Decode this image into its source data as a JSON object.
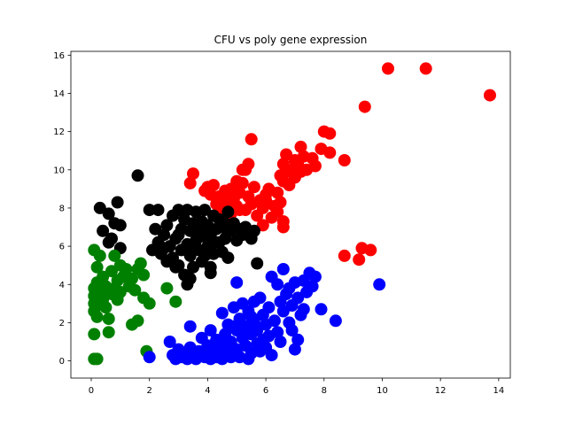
{
  "chart_data": {
    "type": "scatter",
    "title": "CFU vs poly gene expression",
    "xlabel": "",
    "ylabel": "",
    "xlim": [
      -0.7,
      14.4
    ],
    "ylim": [
      -0.9,
      16.2
    ],
    "xticks": [
      0,
      2,
      4,
      6,
      8,
      10,
      12,
      14
    ],
    "yticks": [
      0,
      2,
      4,
      6,
      8,
      10,
      12,
      14,
      16
    ],
    "grid": false,
    "series": [
      {
        "color": "#ff0000",
        "points": [
          [
            3.4,
            9.3
          ],
          [
            3.5,
            9.8
          ],
          [
            3.9,
            8.9
          ],
          [
            4.0,
            9.1
          ],
          [
            4.1,
            8.7
          ],
          [
            4.2,
            9.2
          ],
          [
            4.3,
            8.2
          ],
          [
            4.4,
            8.6
          ],
          [
            4.6,
            8.9
          ],
          [
            4.7,
            8.3
          ],
          [
            4.8,
            9.0
          ],
          [
            4.9,
            8.5
          ],
          [
            5.0,
            9.4
          ],
          [
            5.0,
            8.1
          ],
          [
            5.1,
            8.8
          ],
          [
            5.2,
            9.3
          ],
          [
            5.3,
            7.9
          ],
          [
            5.4,
            8.6
          ],
          [
            5.5,
            8.2
          ],
          [
            5.6,
            9.1
          ],
          [
            5.7,
            7.6
          ],
          [
            5.8,
            8.4
          ],
          [
            5.9,
            7.1
          ],
          [
            5.9,
            8.0
          ],
          [
            6.0,
            8.7
          ],
          [
            6.1,
            9.0
          ],
          [
            6.2,
            7.5
          ],
          [
            6.3,
            8.1
          ],
          [
            6.4,
            7.8
          ],
          [
            6.4,
            8.8
          ],
          [
            6.5,
            8.3
          ],
          [
            6.5,
            9.7
          ],
          [
            6.6,
            7.3
          ],
          [
            6.6,
            9.4
          ],
          [
            6.6,
            10.3
          ],
          [
            6.7,
            9.9
          ],
          [
            6.7,
            10.8
          ],
          [
            6.8,
            9.2
          ],
          [
            6.9,
            10.0
          ],
          [
            7.0,
            10.5
          ],
          [
            7.0,
            9.6
          ],
          [
            7.1,
            10.3
          ],
          [
            7.2,
            11.2
          ],
          [
            7.2,
            9.9
          ],
          [
            7.3,
            10.7
          ],
          [
            7.4,
            10.0
          ],
          [
            7.6,
            10.6
          ],
          [
            7.7,
            10.2
          ],
          [
            7.9,
            11.1
          ],
          [
            8.0,
            12.0
          ],
          [
            8.2,
            11.9
          ],
          [
            8.2,
            10.9
          ],
          [
            8.7,
            10.5
          ],
          [
            5.3,
            10.0
          ],
          [
            5.4,
            10.3
          ],
          [
            5.5,
            11.6
          ],
          [
            5.2,
            10.0
          ],
          [
            6.6,
            7.0
          ],
          [
            8.7,
            5.5
          ],
          [
            9.2,
            5.3
          ],
          [
            9.3,
            5.9
          ],
          [
            9.6,
            5.8
          ],
          [
            9.4,
            13.3
          ],
          [
            10.2,
            15.3
          ],
          [
            11.5,
            15.3
          ],
          [
            13.7,
            13.9
          ],
          [
            4.5,
            8.0
          ],
          [
            4.8,
            7.7
          ],
          [
            5.1,
            7.9
          ],
          [
            6.0,
            8.4
          ]
        ]
      },
      {
        "color": "#000000",
        "points": [
          [
            0.3,
            8.0
          ],
          [
            0.6,
            7.7
          ],
          [
            0.8,
            7.2
          ],
          [
            0.9,
            8.3
          ],
          [
            1.0,
            7.1
          ],
          [
            0.4,
            6.8
          ],
          [
            0.6,
            6.2
          ],
          [
            0.7,
            6.4
          ],
          [
            1.0,
            5.9
          ],
          [
            1.6,
            9.7
          ],
          [
            2.0,
            7.9
          ],
          [
            2.2,
            6.9
          ],
          [
            2.1,
            5.8
          ],
          [
            2.3,
            6.2
          ],
          [
            2.4,
            5.6
          ],
          [
            2.5,
            6.6
          ],
          [
            2.6,
            7.1
          ],
          [
            2.6,
            5.2
          ],
          [
            2.7,
            6.0
          ],
          [
            2.8,
            7.6
          ],
          [
            2.8,
            5.4
          ],
          [
            2.9,
            6.4
          ],
          [
            3.0,
            7.9
          ],
          [
            3.0,
            5.0
          ],
          [
            3.1,
            6.9
          ],
          [
            3.1,
            5.8
          ],
          [
            3.2,
            7.4
          ],
          [
            3.2,
            4.5
          ],
          [
            3.3,
            6.1
          ],
          [
            3.3,
            7.9
          ],
          [
            3.4,
            5.5
          ],
          [
            3.4,
            6.8
          ],
          [
            3.5,
            7.2
          ],
          [
            3.5,
            4.9
          ],
          [
            3.6,
            6.3
          ],
          [
            3.6,
            7.8
          ],
          [
            3.7,
            5.8
          ],
          [
            3.7,
            6.7
          ],
          [
            3.8,
            7.3
          ],
          [
            3.8,
            5.2
          ],
          [
            3.9,
            6.5
          ],
          [
            3.9,
            7.9
          ],
          [
            4.0,
            6.0
          ],
          [
            4.0,
            7.1
          ],
          [
            4.1,
            4.9
          ],
          [
            4.1,
            6.6
          ],
          [
            4.2,
            7.6
          ],
          [
            4.2,
            5.6
          ],
          [
            4.3,
            6.9
          ],
          [
            4.4,
            7.4
          ],
          [
            4.4,
            6.2
          ],
          [
            4.5,
            5.7
          ],
          [
            4.5,
            7.0
          ],
          [
            4.6,
            6.4
          ],
          [
            4.7,
            7.8
          ],
          [
            4.7,
            5.4
          ],
          [
            4.8,
            6.8
          ],
          [
            4.9,
            7.2
          ],
          [
            5.0,
            6.3
          ],
          [
            5.1,
            6.9
          ],
          [
            5.2,
            6.6
          ],
          [
            5.3,
            7.0
          ],
          [
            5.5,
            6.4
          ],
          [
            5.6,
            6.8
          ],
          [
            5.7,
            5.1
          ],
          [
            3.3,
            4.0
          ],
          [
            3.4,
            4.3
          ],
          [
            4.1,
            4.6
          ],
          [
            2.9,
            4.9
          ],
          [
            2.3,
            7.9
          ],
          [
            3.5,
            6.0
          ],
          [
            3.9,
            5.5
          ],
          [
            4.3,
            6.2
          ],
          [
            3.0,
            6.6
          ],
          [
            2.5,
            5.9
          ],
          [
            3.6,
            7.0
          ],
          [
            4.6,
            7.2
          ]
        ]
      },
      {
        "color": "#008000",
        "points": [
          [
            0.1,
            0.1
          ],
          [
            0.2,
            0.1
          ],
          [
            0.1,
            1.4
          ],
          [
            0.2,
            2.3
          ],
          [
            0.1,
            2.6
          ],
          [
            0.1,
            3.0
          ],
          [
            0.1,
            3.4
          ],
          [
            0.1,
            3.8
          ],
          [
            0.2,
            4.1
          ],
          [
            0.2,
            4.9
          ],
          [
            0.3,
            5.5
          ],
          [
            0.1,
            5.8
          ],
          [
            0.3,
            3.6
          ],
          [
            0.4,
            3.2
          ],
          [
            0.4,
            4.4
          ],
          [
            0.5,
            2.8
          ],
          [
            0.5,
            3.9
          ],
          [
            0.6,
            2.2
          ],
          [
            0.6,
            1.5
          ],
          [
            0.7,
            3.5
          ],
          [
            0.7,
            4.7
          ],
          [
            0.8,
            3.8
          ],
          [
            0.8,
            5.5
          ],
          [
            0.9,
            3.2
          ],
          [
            0.9,
            4.2
          ],
          [
            1.0,
            5.0
          ],
          [
            1.0,
            3.6
          ],
          [
            1.1,
            4.4
          ],
          [
            1.2,
            4.8
          ],
          [
            1.3,
            3.9
          ],
          [
            1.4,
            4.3
          ],
          [
            1.4,
            1.9
          ],
          [
            1.5,
            3.7
          ],
          [
            1.6,
            4.8
          ],
          [
            1.6,
            2.1
          ],
          [
            1.7,
            5.1
          ],
          [
            1.8,
            3.3
          ],
          [
            1.8,
            4.5
          ],
          [
            1.9,
            0.5
          ],
          [
            2.0,
            3.0
          ],
          [
            2.6,
            3.8
          ],
          [
            2.9,
            3.1
          ],
          [
            0.2,
            3.0
          ]
        ]
      },
      {
        "color": "#0000ff",
        "points": [
          [
            2.0,
            0.2
          ],
          [
            2.7,
            1.0
          ],
          [
            2.8,
            0.3
          ],
          [
            2.9,
            0.1
          ],
          [
            3.0,
            0.6
          ],
          [
            3.1,
            0.2
          ],
          [
            3.2,
            0.4
          ],
          [
            3.3,
            0.1
          ],
          [
            3.4,
            0.7
          ],
          [
            3.4,
            1.8
          ],
          [
            3.5,
            0.3
          ],
          [
            3.6,
            0.1
          ],
          [
            3.7,
            0.5
          ],
          [
            3.8,
            1.2
          ],
          [
            3.9,
            0.2
          ],
          [
            4.0,
            0.8
          ],
          [
            4.1,
            0.1
          ],
          [
            4.1,
            1.6
          ],
          [
            4.2,
            0.4
          ],
          [
            4.3,
            1.1
          ],
          [
            4.3,
            0.2
          ],
          [
            4.4,
            0.7
          ],
          [
            4.5,
            2.5
          ],
          [
            4.5,
            0.1
          ],
          [
            4.6,
            1.4
          ],
          [
            4.7,
            0.5
          ],
          [
            4.7,
            1.9
          ],
          [
            4.8,
            0.2
          ],
          [
            4.8,
            1.0
          ],
          [
            4.9,
            2.8
          ],
          [
            5.0,
            0.6
          ],
          [
            5.0,
            1.6
          ],
          [
            5.0,
            4.1
          ],
          [
            5.1,
            0.2
          ],
          [
            5.1,
            2.2
          ],
          [
            5.2,
            1.2
          ],
          [
            5.2,
            3.0
          ],
          [
            5.3,
            0.8
          ],
          [
            5.3,
            1.8
          ],
          [
            5.4,
            0.1
          ],
          [
            5.4,
            2.6
          ],
          [
            5.5,
            1.4
          ],
          [
            5.5,
            0.4
          ],
          [
            5.6,
            3.1
          ],
          [
            5.6,
            2.0
          ],
          [
            5.7,
            0.9
          ],
          [
            5.7,
            1.6
          ],
          [
            5.8,
            3.3
          ],
          [
            5.8,
            0.5
          ],
          [
            5.9,
            2.4
          ],
          [
            5.9,
            1.1
          ],
          [
            6.0,
            1.9
          ],
          [
            6.0,
            0.7
          ],
          [
            6.1,
            2.8
          ],
          [
            6.1,
            1.3
          ],
          [
            6.2,
            0.3
          ],
          [
            6.3,
            2.1
          ],
          [
            6.4,
            4.0
          ],
          [
            6.4,
            1.5
          ],
          [
            6.5,
            3.1
          ],
          [
            6.5,
            1.0
          ],
          [
            6.6,
            4.8
          ],
          [
            6.6,
            2.6
          ],
          [
            6.7,
            3.5
          ],
          [
            6.8,
            2.0
          ],
          [
            6.8,
            3.8
          ],
          [
            6.9,
            1.6
          ],
          [
            6.9,
            2.9
          ],
          [
            7.0,
            4.1
          ],
          [
            7.0,
            0.6
          ],
          [
            7.1,
            1.1
          ],
          [
            7.1,
            3.3
          ],
          [
            7.2,
            2.4
          ],
          [
            7.3,
            4.2
          ],
          [
            7.3,
            2.7
          ],
          [
            7.4,
            3.6
          ],
          [
            7.5,
            4.6
          ],
          [
            7.6,
            3.9
          ],
          [
            7.7,
            4.4
          ],
          [
            7.9,
            2.7
          ],
          [
            8.4,
            2.1
          ],
          [
            9.9,
            4.0
          ],
          [
            6.2,
            4.4
          ],
          [
            5.5,
            2.3
          ],
          [
            4.9,
            1.8
          ],
          [
            4.6,
            0.9
          ]
        ]
      }
    ]
  }
}
